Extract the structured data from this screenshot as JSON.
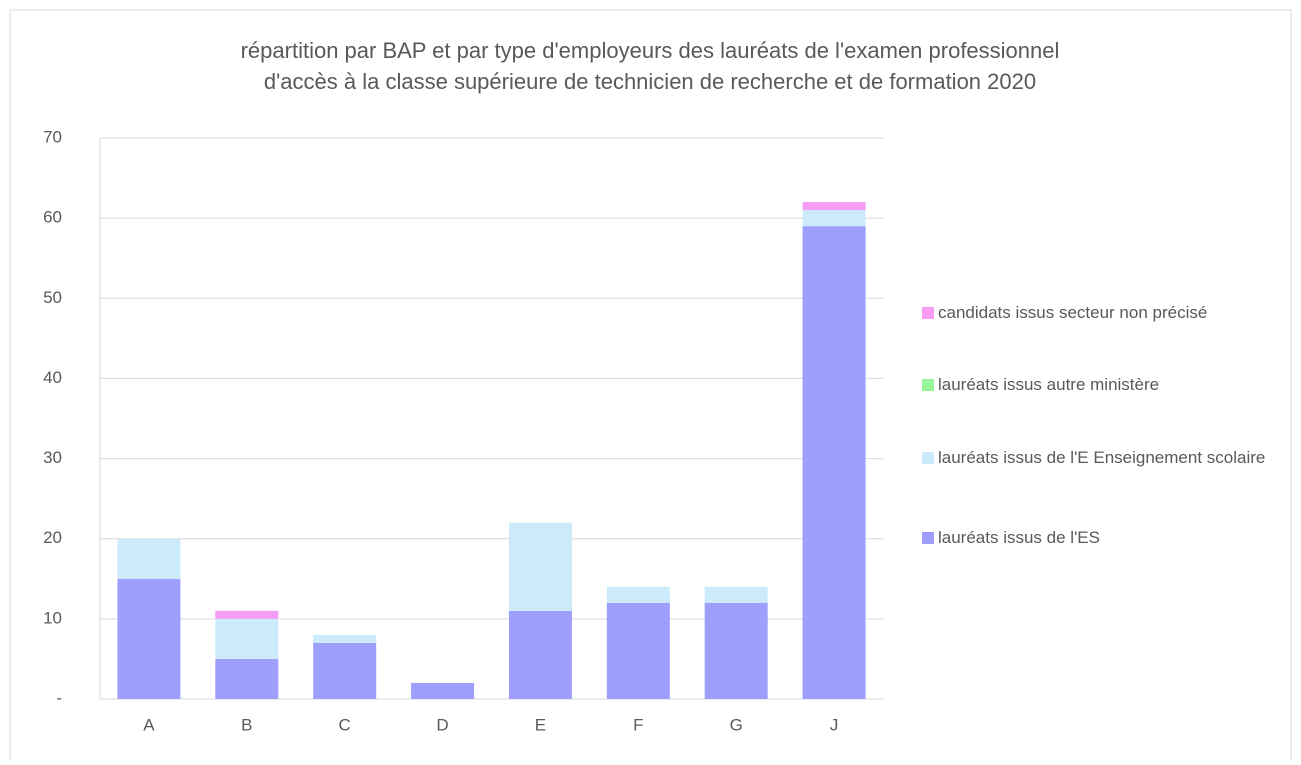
{
  "chart_data": {
    "type": "stacked_bar",
    "title": [
      "répartition par BAP et par type d'employeurs des lauréats de l'examen professionnel",
      "d'accès à la classe supérieure  de technicien  de recherche et de formation 2020"
    ],
    "categories": [
      "A",
      "B",
      "C",
      "D",
      "E",
      "F",
      "G",
      "J"
    ],
    "series": [
      {
        "name": "lauréats issus de l'ES",
        "color": "#9e9efc",
        "values": [
          15,
          5,
          7,
          2,
          11,
          12,
          12,
          59
        ]
      },
      {
        "name": "lauréats issus de l'E Enseignement scolaire",
        "color": "#cbebfb",
        "values": [
          5,
          5,
          1,
          0,
          11,
          2,
          2,
          2
        ]
      },
      {
        "name": "lauréats issus autre ministère",
        "color": "#99f599",
        "values": [
          0,
          0,
          0,
          0,
          0,
          0,
          0,
          0
        ]
      },
      {
        "name": "candidats issus secteur non précisé",
        "color": "#f79cf5",
        "values": [
          0,
          1,
          0,
          0,
          0,
          0,
          0,
          1
        ]
      }
    ],
    "ylim": [
      0,
      70
    ],
    "yticks": [
      {
        "value": 0,
        "label": "-"
      },
      10,
      20,
      30,
      40,
      50,
      60,
      70
    ],
    "grid": true,
    "legend": "right"
  }
}
